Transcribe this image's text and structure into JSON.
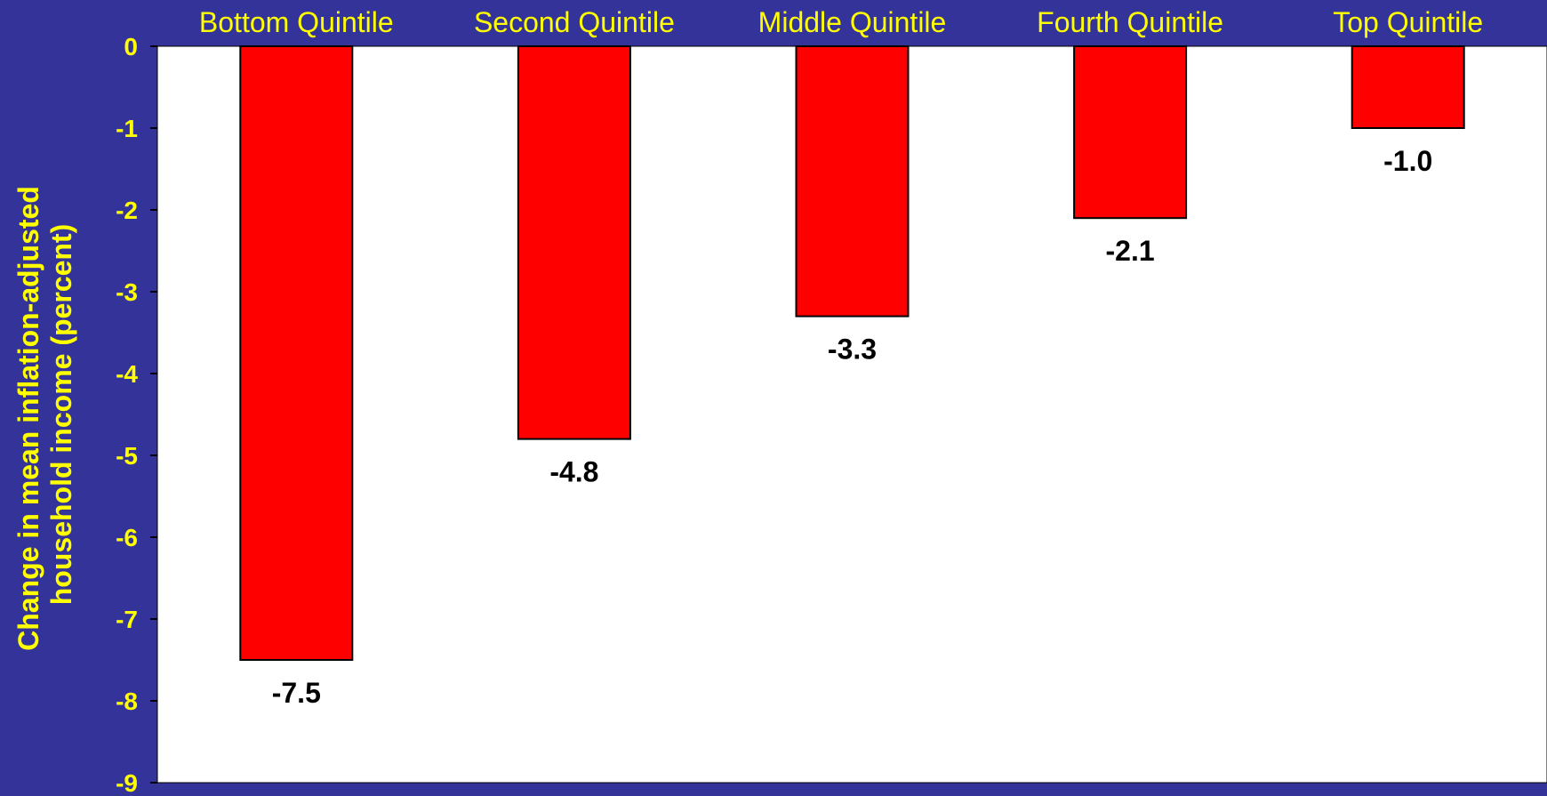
{
  "colors": {
    "background": "#333399",
    "plot_area": "#ffffff",
    "bar_fill": "#ff0000",
    "axis_text": "#ffff00",
    "value_text": "#000000"
  },
  "chart_data": {
    "type": "bar",
    "categories": [
      "Bottom Quintile",
      "Second Quintile",
      "Middle Quintile",
      "Fourth Quintile",
      "Top Quintile"
    ],
    "values": [
      -7.5,
      -4.8,
      -3.3,
      -2.1,
      -1.0
    ],
    "value_labels": [
      "-7.5",
      "-4.8",
      "-3.3",
      "-2.1",
      "-1.0"
    ],
    "title": "",
    "xlabel": "",
    "ylabel_lines": [
      "Change in mean inflation-adjusted",
      "household income (percent)"
    ],
    "ylim": [
      -9,
      0
    ],
    "yticks": [
      0,
      -1,
      -2,
      -3,
      -4,
      -5,
      -6,
      -7,
      -8,
      -9
    ],
    "ytick_labels": [
      "0",
      "-1",
      "-2",
      "-3",
      "-4",
      "-5",
      "-6",
      "-7",
      "-8",
      "-9"
    ],
    "grid": false,
    "category_axis_position": "top"
  }
}
